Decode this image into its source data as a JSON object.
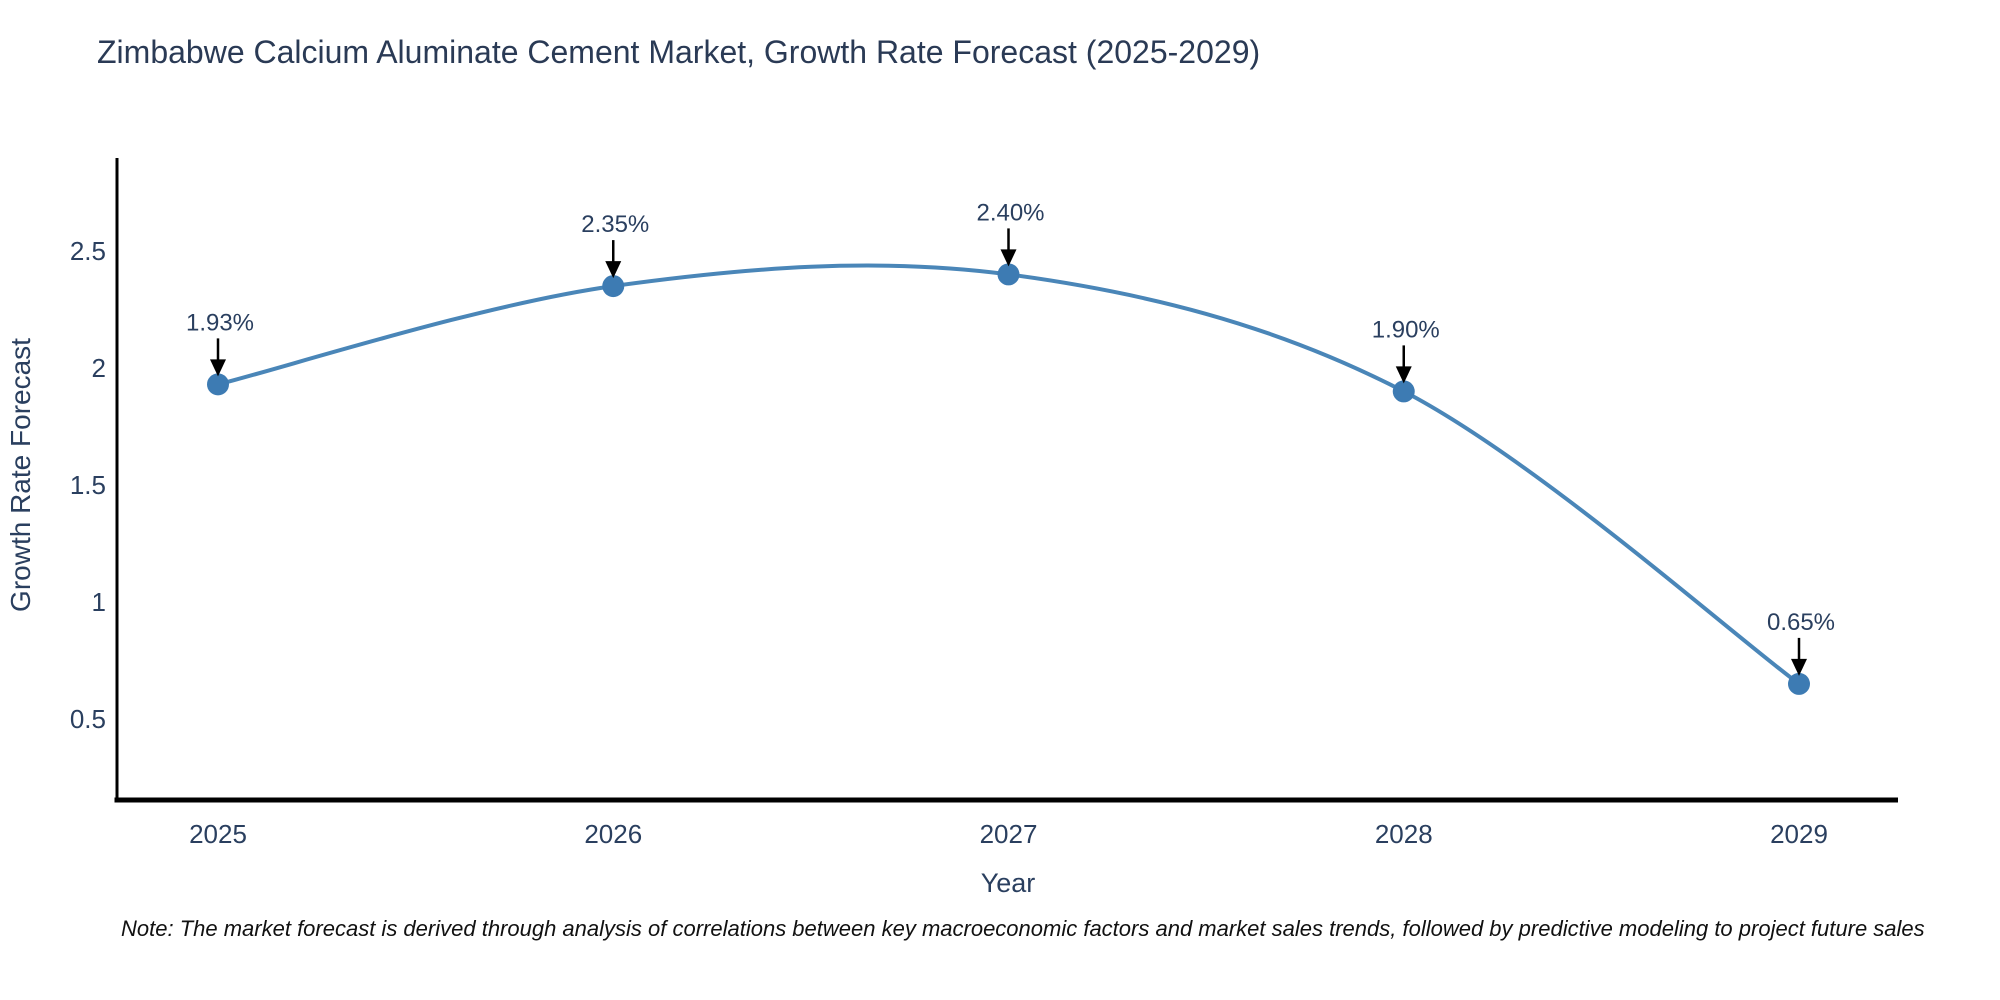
{
  "title": "Zimbabwe Calcium Aluminate Cement Market, Growth Rate Forecast (2025-2029)",
  "note": "Note: The market forecast is derived through analysis of correlations between key macroeconomic factors and market sales trends, followed by predictive modeling to project future sales",
  "chart_data": {
    "type": "line",
    "title": "Zimbabwe Calcium Aluminate Cement Market, Growth Rate Forecast (2025-2029)",
    "x": [
      2025,
      2026,
      2027,
      2028,
      2029
    ],
    "series": [
      {
        "name": "Growth Rate Forecast",
        "values": [
          1.93,
          2.35,
          2.4,
          1.9,
          0.65
        ]
      }
    ],
    "point_labels": [
      "1.93%",
      "2.35%",
      "2.40%",
      "1.90%",
      "0.65%"
    ],
    "xlabel": "Year",
    "ylabel": "Growth Rate Forecast",
    "xticks": [
      2025,
      2026,
      2027,
      2028,
      2029
    ],
    "yticks": [
      0.5,
      1,
      1.5,
      2,
      2.5
    ],
    "ylim": [
      0.15,
      2.9
    ],
    "xlim": [
      2024.74,
      2029.26
    ],
    "line_shape": "spline",
    "grid": false,
    "legend_position": "none",
    "markers": true,
    "annotation_arrows": true,
    "colors": {
      "line": "#4a86b8",
      "marker": "#3d7bb3",
      "arrow": "#000000",
      "text": "#2a3f5f",
      "axis": "#000000",
      "note_text": "#111111",
      "background": "#ffffff"
    }
  }
}
